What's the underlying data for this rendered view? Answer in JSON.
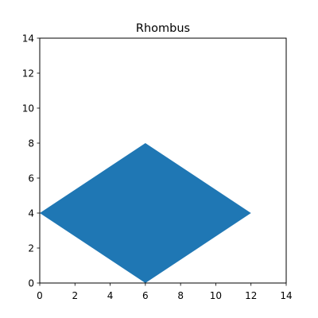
{
  "chart_data": {
    "type": "area",
    "title": "Rhombus",
    "xlabel": "",
    "ylabel": "",
    "xlim": [
      0,
      14
    ],
    "ylim": [
      0,
      14
    ],
    "xticks": [
      0,
      2,
      4,
      6,
      8,
      10,
      12,
      14
    ],
    "yticks": [
      0,
      2,
      4,
      6,
      8,
      10,
      12,
      14
    ],
    "grid": false,
    "series": [
      {
        "shape": "rhombus",
        "color": "#1f77b4",
        "points": [
          {
            "x": 0,
            "y": 4
          },
          {
            "x": 6,
            "y": 8
          },
          {
            "x": 12,
            "y": 4
          },
          {
            "x": 6,
            "y": 0
          }
        ]
      }
    ]
  }
}
